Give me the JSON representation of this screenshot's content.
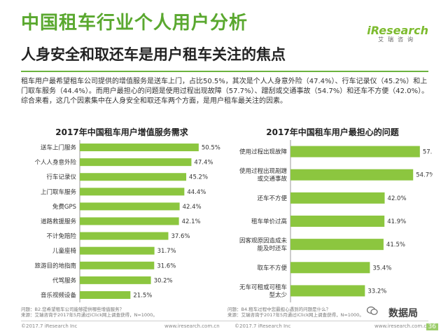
{
  "header": {
    "title": "中国租车行业个人用户分析",
    "subtitle": "人身安全和取还车是用户租车关注的焦点",
    "summary": "租车用户最希望租车公司提供的增值服务是送车上门，占比50.5%，其次是个人人身意外险（47.4%）、行车记录仪（45.2%）和上门取车服务（44.4%）。而用户最担心的问题是使用过程出现故障（57.7%）、蹭刮或交通事故（54.7%）和还车不方便（42.0%）。综合来看，这几个因素集中在人身安全和取还车两个方面，是用户租车最关注的因素。"
  },
  "logo": {
    "brand": "iResearch",
    "sub": "艾瑞咨询"
  },
  "colors": {
    "accent": "#5aa82f",
    "bar": "#8cc63f"
  },
  "chart_data": [
    {
      "type": "bar",
      "orientation": "horizontal",
      "title": "2017年中国租车用户增值服务需求",
      "categories": [
        "送车上门服务",
        "个人人身意外险",
        "行车记录仪",
        "上门取车服务",
        "免费GPS",
        "道路救援服务",
        "不计免赔险",
        "儿童座椅",
        "旅游目的地指南",
        "代驾服务",
        "音乐视频设备"
      ],
      "labels": [
        "50.5%",
        "47.4%",
        "45.2%",
        "44.4%",
        "42.4%",
        "42.1%",
        "37.6%",
        "31.7%",
        "31.6%",
        "30.2%",
        "21.5%"
      ],
      "values": [
        50.5,
        47.4,
        45.2,
        44.4,
        42.4,
        42.1,
        37.6,
        31.7,
        31.6,
        30.2,
        21.5
      ],
      "xlim": [
        0,
        55
      ]
    },
    {
      "type": "bar",
      "orientation": "horizontal",
      "title": "2017年中国租车用户最担心的问题",
      "categories": [
        [
          "使用过程出现故障"
        ],
        [
          "使用过程出现剐蹭",
          "或交通事故"
        ],
        [
          "还车不方便"
        ],
        [
          "租车单价过高"
        ],
        [
          "因客观原因造成未",
          "能及时还车"
        ],
        [
          "取车不方便"
        ],
        [
          "无车可租或可租车",
          "型太少"
        ]
      ],
      "labels": [
        "57.7%",
        "54.7%",
        "42.0%",
        "41.9%",
        "41.5%",
        "35.4%",
        "33.2%"
      ],
      "values": [
        57.7,
        54.7,
        42.0,
        41.9,
        41.5,
        35.4,
        33.2
      ],
      "xlim": [
        0,
        64
      ]
    }
  ],
  "notes": {
    "left": [
      "问题：B2.您希望租车公司能够提供哪些增值服务？",
      "来源：艾瑞咨询于2017年5月通过iClick网上调查获得，N=1000。"
    ],
    "right": [
      "问题：B4.租车过程中您最担心遇到的问题是什么？",
      "来源：艾瑞咨询于2017年5月通过iClick网上调查获得，N=1000。"
    ]
  },
  "footer": {
    "copyright": "©2017.7 iResearch Inc",
    "site": "www.iresearch.com.cn",
    "page": "36",
    "watermark": "数据局"
  }
}
